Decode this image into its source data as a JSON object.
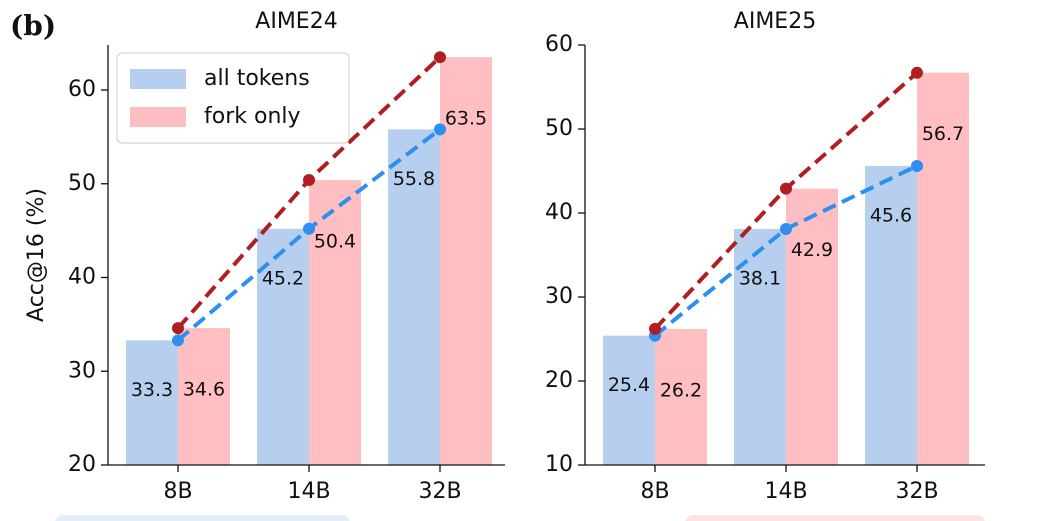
{
  "panel_label": "(b)",
  "chart_data": [
    {
      "type": "bar",
      "title": "AIME24",
      "y_label": "Acc@16 (%)",
      "categories": [
        "8B",
        "14B",
        "32B"
      ],
      "series": [
        {
          "name": "all tokens",
          "color": "#b7cfee",
          "line_color": "#2e8ff0",
          "values": [
            33.3,
            45.2,
            55.8
          ]
        },
        {
          "name": "fork only",
          "color": "#ffbfc2",
          "line_color": "#b01e22",
          "values": [
            34.6,
            50.4,
            63.5
          ]
        }
      ],
      "ylim": [
        20,
        64.8
      ],
      "yticks": [
        20,
        30,
        40,
        50,
        60
      ],
      "legend": "upper left"
    },
    {
      "type": "bar",
      "title": "AIME25",
      "categories": [
        "8B",
        "14B",
        "32B"
      ],
      "series": [
        {
          "name": "all tokens",
          "color": "#b7cfee",
          "line_color": "#2e8ff0",
          "values": [
            25.4,
            38.1,
            45.6
          ]
        },
        {
          "name": "fork only",
          "color": "#ffbfc2",
          "line_color": "#b01e22",
          "values": [
            26.2,
            42.9,
            56.7
          ]
        }
      ],
      "ylim": [
        10,
        60
      ],
      "yticks": [
        10,
        20,
        30,
        40,
        50,
        60
      ]
    }
  ]
}
